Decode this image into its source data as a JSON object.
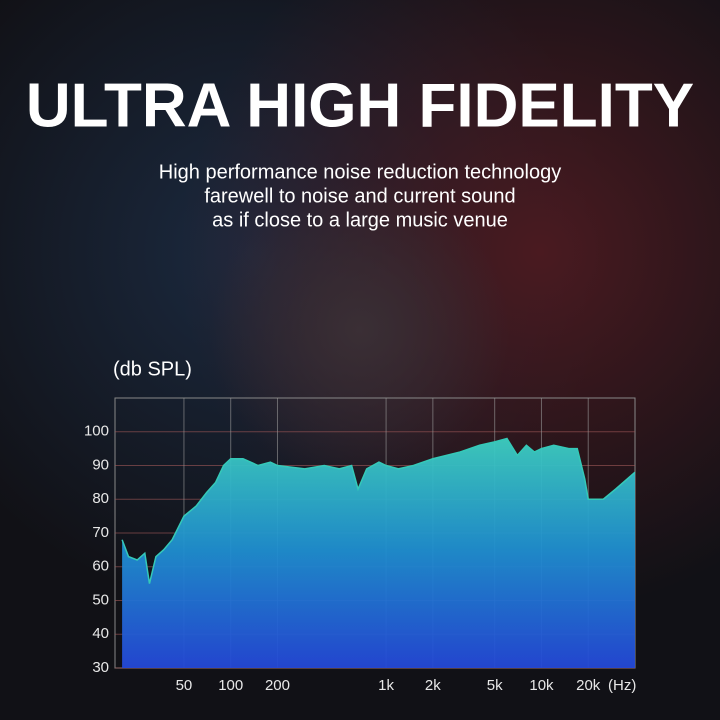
{
  "chart_data": {
    "type": "area",
    "title": "ULTRA HIGH FIDELITY",
    "subtitle": [
      "High performance noise reduction technology",
      "farewell to noise and current sound",
      "as if close to a large music venue"
    ],
    "y_label": "(db SPL)",
    "x_label": "(Hz)",
    "x": [
      20,
      22,
      25,
      28,
      30,
      33,
      37,
      42,
      50,
      60,
      70,
      80,
      90,
      100,
      120,
      150,
      180,
      200,
      300,
      400,
      500,
      600,
      660,
      750,
      900,
      1000,
      1200,
      1500,
      2000,
      3000,
      4000,
      5000,
      6000,
      7000,
      8000,
      9000,
      10000,
      12000,
      15000,
      17000,
      19000,
      20000,
      25000,
      30000,
      40000
    ],
    "values": [
      68,
      63,
      62,
      64,
      55,
      63,
      65,
      68,
      75,
      78,
      82,
      85,
      90,
      92,
      92,
      90,
      91,
      90,
      89,
      90,
      89,
      90,
      83,
      89,
      91,
      90,
      89,
      90,
      92,
      94,
      96,
      97,
      98,
      93,
      96,
      94,
      95,
      96,
      95,
      95,
      86,
      80,
      80,
      83,
      88
    ],
    "log_x": true,
    "xlim": [
      18,
      40000
    ],
    "ylim": [
      30,
      110
    ],
    "yticks": [
      30,
      40,
      50,
      60,
      70,
      80,
      90,
      100
    ],
    "xticks": [
      50,
      100,
      200,
      {
        "value": 1000,
        "label": "1k"
      },
      {
        "value": 2000,
        "label": "2k"
      },
      {
        "value": 5000,
        "label": "5k"
      },
      {
        "value": 10000,
        "label": "10k"
      },
      {
        "value": 20000,
        "label": "20k"
      }
    ],
    "grid": true,
    "color": "#35c9b8"
  }
}
